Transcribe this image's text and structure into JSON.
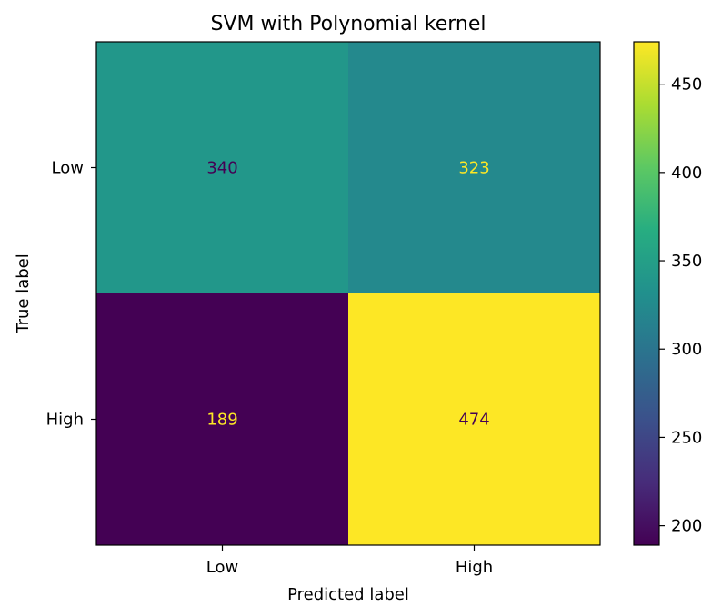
{
  "chart_data": {
    "type": "heatmap",
    "title": "SVM with Polynomial kernel",
    "xlabel": "Predicted label",
    "ylabel": "True label",
    "x_categories": [
      "Low",
      "High"
    ],
    "y_categories": [
      "Low",
      "High"
    ],
    "matrix": [
      [
        340,
        323
      ],
      [
        189,
        474
      ]
    ],
    "colormap": "viridis",
    "colorbar": {
      "vmin": 189,
      "vmax": 474,
      "ticks": [
        200,
        250,
        300,
        350,
        400,
        450
      ]
    },
    "grid": false
  }
}
